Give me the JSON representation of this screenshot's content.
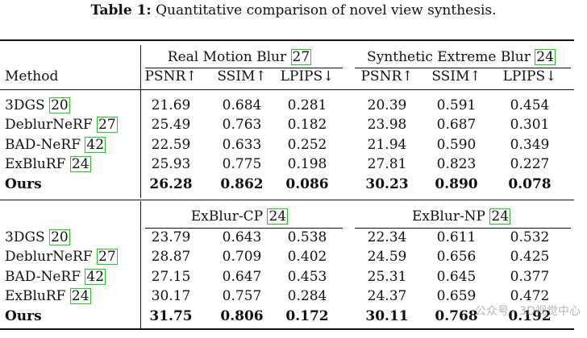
{
  "caption": {
    "label": "Table 1:",
    "text": "Quantitative comparison of novel view synthesis."
  },
  "method_header": "Method",
  "metrics": [
    "PSNR↑",
    "SSIM↑",
    "LPIPS↓",
    "PSNR↑",
    "SSIM↑",
    "LPIPS↓"
  ],
  "blocks": [
    {
      "group_left": {
        "name": "Real Motion Blur",
        "ref": "27"
      },
      "group_right": {
        "name": "Synthetic Extreme Blur",
        "ref": "24"
      },
      "rows": [
        {
          "method": "3DGS",
          "ref": "20",
          "values": [
            "21.69",
            "0.684",
            "0.281",
            "20.39",
            "0.591",
            "0.454"
          ],
          "bold": false
        },
        {
          "method": "DeblurNeRF",
          "ref": "27",
          "values": [
            "25.49",
            "0.763",
            "0.182",
            "23.98",
            "0.687",
            "0.301"
          ],
          "bold": false
        },
        {
          "method": "BAD-NeRF",
          "ref": "42",
          "values": [
            "22.59",
            "0.633",
            "0.252",
            "21.94",
            "0.590",
            "0.349"
          ],
          "bold": false
        },
        {
          "method": "ExBluRF",
          "ref": "24",
          "values": [
            "25.93",
            "0.775",
            "0.198",
            "27.81",
            "0.823",
            "0.227"
          ],
          "bold": false
        },
        {
          "method": "Ours",
          "ref": "",
          "values": [
            "26.28",
            "0.862",
            "0.086",
            "30.23",
            "0.890",
            "0.078"
          ],
          "bold": true
        }
      ]
    },
    {
      "group_left": {
        "name": "ExBlur-CP",
        "ref": "24"
      },
      "group_right": {
        "name": "ExBlur-NP",
        "ref": "24"
      },
      "rows": [
        {
          "method": "3DGS",
          "ref": "20",
          "values": [
            "23.79",
            "0.643",
            "0.538",
            "22.34",
            "0.611",
            "0.532"
          ],
          "bold": false
        },
        {
          "method": "DeblurNeRF",
          "ref": "27",
          "values": [
            "28.87",
            "0.709",
            "0.402",
            "24.59",
            "0.656",
            "0.425"
          ],
          "bold": false
        },
        {
          "method": "BAD-NeRF",
          "ref": "42",
          "values": [
            "27.15",
            "0.647",
            "0.453",
            "25.31",
            "0.645",
            "0.377"
          ],
          "bold": false
        },
        {
          "method": "ExBluRF",
          "ref": "24",
          "values": [
            "30.17",
            "0.757",
            "0.284",
            "24.37",
            "0.659",
            "0.472"
          ],
          "bold": false
        },
        {
          "method": "Ours",
          "ref": "",
          "values": [
            "31.75",
            "0.806",
            "0.172",
            "30.11",
            "0.768",
            "0.192"
          ],
          "bold": true
        }
      ]
    }
  ],
  "watermark": "公众号 · 3D视觉中心"
}
